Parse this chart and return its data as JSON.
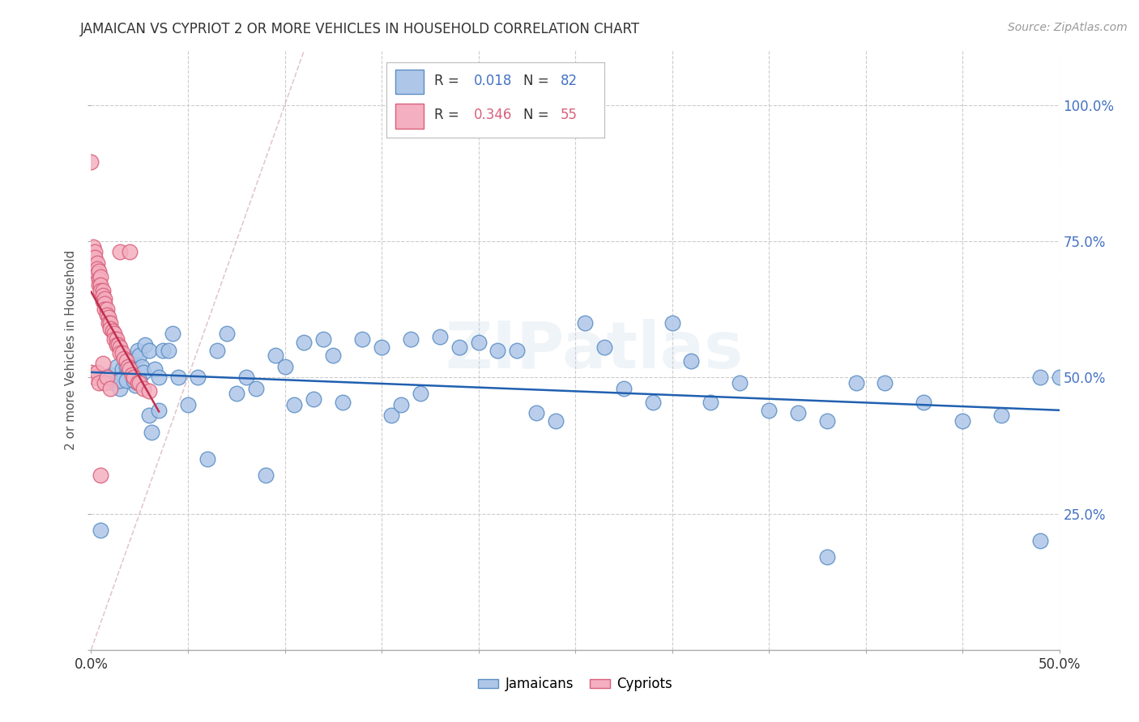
{
  "title": "JAMAICAN VS CYPRIOT 2 OR MORE VEHICLES IN HOUSEHOLD CORRELATION CHART",
  "source": "Source: ZipAtlas.com",
  "ylabel": "2 or more Vehicles in Household",
  "xlim": [
    0.0,
    0.5
  ],
  "ylim": [
    0.0,
    1.1
  ],
  "blue_R": 0.018,
  "blue_N": 82,
  "pink_R": 0.346,
  "pink_N": 55,
  "blue_color": "#aec6e8",
  "pink_color": "#f4afc0",
  "blue_edge": "#5b8ec4",
  "pink_edge": "#d9607a",
  "regression_blue_color": "#2060b0",
  "regression_pink_color": "#c03050",
  "diagonal_color": "#d8b0b8",
  "watermark": "ZIPatlas",
  "blue_points_x": [
    0.005,
    0.01,
    0.012,
    0.013,
    0.015,
    0.016,
    0.017,
    0.018,
    0.019,
    0.02,
    0.021,
    0.022,
    0.023,
    0.024,
    0.025,
    0.026,
    0.027,
    0.028,
    0.03,
    0.031,
    0.033,
    0.035,
    0.037,
    0.04,
    0.042,
    0.045,
    0.05,
    0.055,
    0.06,
    0.065,
    0.07,
    0.075,
    0.08,
    0.085,
    0.09,
    0.095,
    0.1,
    0.105,
    0.11,
    0.115,
    0.12,
    0.125,
    0.13,
    0.14,
    0.15,
    0.155,
    0.16,
    0.165,
    0.17,
    0.18,
    0.19,
    0.2,
    0.21,
    0.22,
    0.23,
    0.24,
    0.255,
    0.265,
    0.275,
    0.29,
    0.3,
    0.31,
    0.32,
    0.335,
    0.35,
    0.365,
    0.38,
    0.395,
    0.41,
    0.43,
    0.45,
    0.47,
    0.49,
    0.015,
    0.018,
    0.022,
    0.025,
    0.03,
    0.035,
    0.5,
    0.38,
    0.49
  ],
  "blue_points_y": [
    0.22,
    0.505,
    0.49,
    0.52,
    0.48,
    0.515,
    0.5,
    0.52,
    0.51,
    0.535,
    0.515,
    0.5,
    0.485,
    0.55,
    0.54,
    0.52,
    0.51,
    0.56,
    0.55,
    0.4,
    0.515,
    0.5,
    0.55,
    0.55,
    0.58,
    0.5,
    0.45,
    0.5,
    0.35,
    0.55,
    0.58,
    0.47,
    0.5,
    0.48,
    0.32,
    0.54,
    0.52,
    0.45,
    0.565,
    0.46,
    0.57,
    0.54,
    0.455,
    0.57,
    0.555,
    0.43,
    0.45,
    0.57,
    0.47,
    0.575,
    0.555,
    0.565,
    0.55,
    0.55,
    0.435,
    0.42,
    0.6,
    0.555,
    0.48,
    0.455,
    0.6,
    0.53,
    0.455,
    0.49,
    0.44,
    0.435,
    0.42,
    0.49,
    0.49,
    0.455,
    0.42,
    0.43,
    0.5,
    0.495,
    0.495,
    0.495,
    0.495,
    0.43,
    0.44,
    0.5,
    0.17,
    0.2
  ],
  "pink_points_x": [
    0.0,
    0.001,
    0.002,
    0.002,
    0.003,
    0.003,
    0.003,
    0.004,
    0.004,
    0.004,
    0.005,
    0.005,
    0.005,
    0.006,
    0.006,
    0.006,
    0.007,
    0.007,
    0.007,
    0.008,
    0.008,
    0.009,
    0.009,
    0.01,
    0.01,
    0.011,
    0.012,
    0.012,
    0.013,
    0.013,
    0.014,
    0.015,
    0.015,
    0.016,
    0.017,
    0.018,
    0.019,
    0.02,
    0.021,
    0.022,
    0.024,
    0.025,
    0.027,
    0.03,
    0.0,
    0.002,
    0.003,
    0.004,
    0.005,
    0.006,
    0.007,
    0.008,
    0.01,
    0.015,
    0.02
  ],
  "pink_points_y": [
    0.895,
    0.74,
    0.73,
    0.72,
    0.71,
    0.7,
    0.69,
    0.695,
    0.68,
    0.67,
    0.685,
    0.67,
    0.66,
    0.66,
    0.65,
    0.64,
    0.645,
    0.635,
    0.625,
    0.625,
    0.615,
    0.61,
    0.6,
    0.6,
    0.59,
    0.585,
    0.58,
    0.57,
    0.57,
    0.56,
    0.56,
    0.555,
    0.545,
    0.545,
    0.535,
    0.53,
    0.52,
    0.515,
    0.505,
    0.5,
    0.49,
    0.49,
    0.48,
    0.475,
    0.51,
    0.5,
    0.51,
    0.49,
    0.32,
    0.525,
    0.49,
    0.5,
    0.48,
    0.73,
    0.73
  ]
}
